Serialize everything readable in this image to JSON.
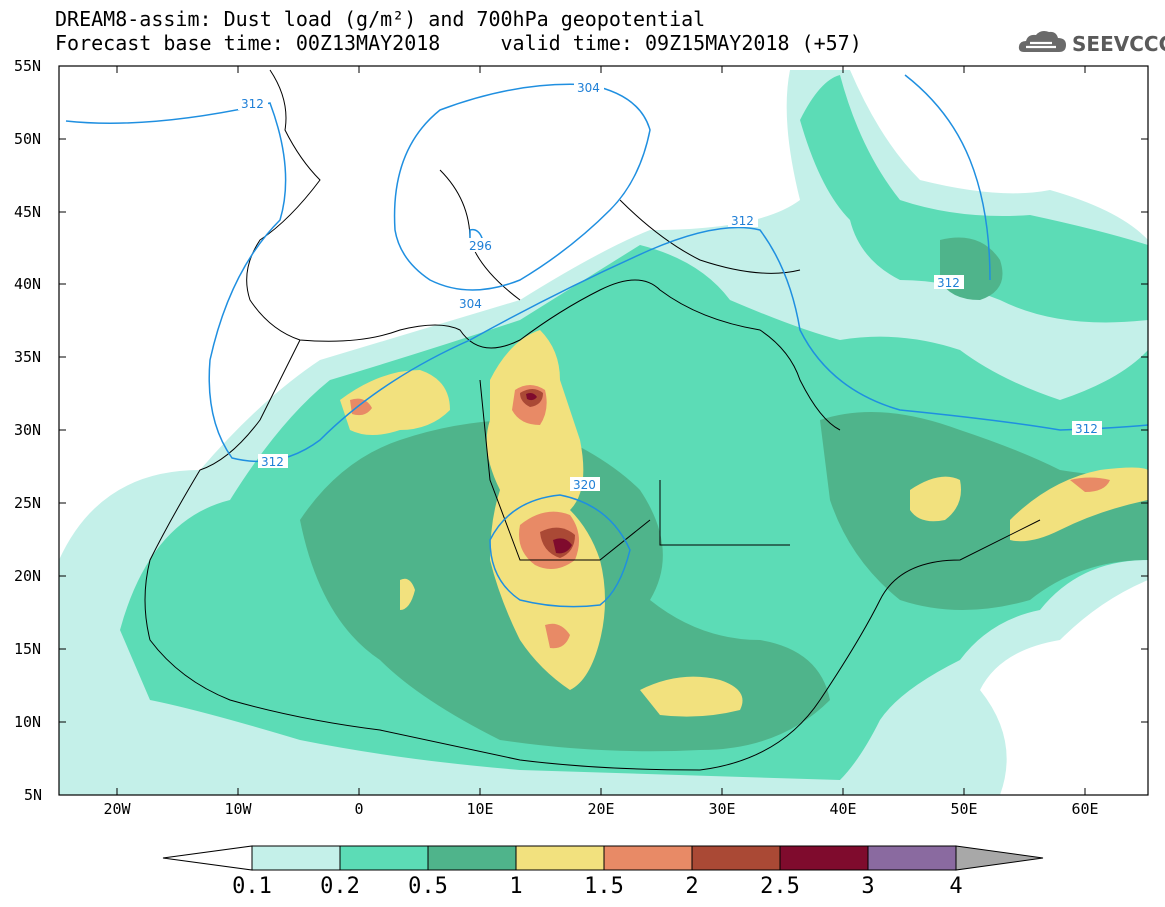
{
  "header": {
    "title_line_1": "DREAM8-assim: Dust load (g/m²) and 700hPa geopotential",
    "title_line_2": "Forecast base time: 00Z13MAY2018     valid time: 09Z15MAY2018 (+57)"
  },
  "logo": {
    "text": "SEEVCCC",
    "icon": "cloud-icon"
  },
  "map": {
    "lon_range": [
      -25,
      65
    ],
    "lat_range": [
      5,
      55
    ],
    "lat_ticks": [
      "55N",
      "50N",
      "45N",
      "40N",
      "35N",
      "30N",
      "25N",
      "20N",
      "15N",
      "10N",
      "5N"
    ],
    "lon_ticks": [
      "20W",
      "10W",
      "0",
      "10E",
      "20E",
      "30E",
      "40E",
      "50E",
      "60E"
    ],
    "geopotential_labels": [
      "312",
      "304",
      "312",
      "296",
      "304",
      "312",
      "312",
      "312",
      "320"
    ],
    "colors": {
      "contour_line": "#1f8fe0",
      "coast": "#000000"
    }
  },
  "colorbar": {
    "labels": [
      "0.1",
      "0.2",
      "0.5",
      "1",
      "1.5",
      "2",
      "2.5",
      "3",
      "4"
    ],
    "colors": [
      "#ffffff",
      "#c4f0e9",
      "#5cdcb6",
      "#4fb48b",
      "#f2e17e",
      "#e88a66",
      "#aa4935",
      "#7f0b2d",
      "#8a6aa0",
      "#a8a8a8"
    ]
  }
}
